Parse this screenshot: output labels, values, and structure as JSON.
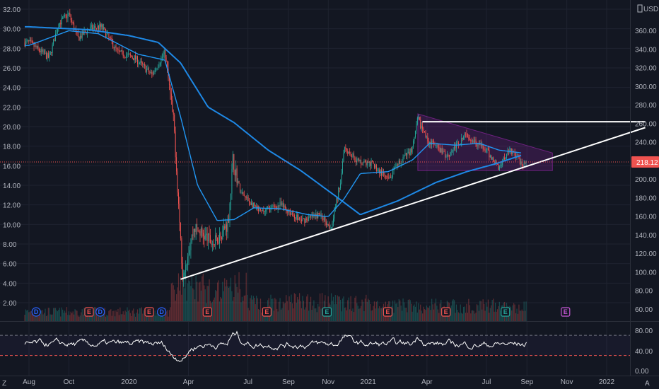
{
  "colors": {
    "background": "#131722",
    "grid": "#1f2330",
    "text": "#b2b5be",
    "up": "#26a69a",
    "down": "#ef5350",
    "ma_fast": "#2196f3",
    "ma_slow": "#1e88e5",
    "trendline": "#ffffff",
    "resistance": "#ffffff",
    "triangle_fill": "#9c27b0",
    "price_line": "#ef5350",
    "rsi_line": "#ffffff",
    "rsi_band": "#b2b5be",
    "rsi_lower": "#ef5350",
    "dividend": "#2962ff",
    "earnings_past_red": "#ef5350",
    "earnings_past_green": "#26a69a",
    "earnings_future": "#c858d8"
  },
  "toolbar": {
    "currency": "USD",
    "scale_icon": "scale-icon",
    "mode_left": "Z",
    "mode_right": "A"
  },
  "price_badge": "218.12",
  "chart_data": {
    "type": "candlestick",
    "x_axis_labels": [
      "Aug",
      "Oct",
      "2020",
      "Apr",
      "Jul",
      "Sep",
      "Nov",
      "2021",
      "Apr",
      "Jul",
      "Sep",
      "Nov",
      "2022"
    ],
    "left_axis": {
      "ticks": [
        "2.00",
        "4.00",
        "6.00",
        "8.00",
        "10.00",
        "12.00",
        "14.00",
        "16.00",
        "18.00",
        "20.00",
        "22.00",
        "24.00",
        "26.00",
        "28.00",
        "30.00",
        "32.00"
      ],
      "range": [
        0,
        32.6
      ]
    },
    "right_axis": {
      "ticks": [
        "60.00",
        "80.00",
        "100.00",
        "120.00",
        "140.00",
        "160.00",
        "180.00",
        "200.00",
        "220.00",
        "240.00",
        "260.00",
        "280.00",
        "300.00",
        "320.00",
        "340.00",
        "360.00"
      ],
      "range": [
        44.4,
        373.3
      ]
    },
    "last_price": 218.12,
    "rsi": {
      "ticks": [
        "80.00",
        "40.00",
        "0.00"
      ],
      "upper_band": 70,
      "lower_band": 30,
      "range": [
        0,
        86
      ]
    },
    "price_anchors": [
      {
        "t": "2019-08",
        "p": 28.6
      },
      {
        "t": "2019-09-01",
        "p": 27
      },
      {
        "t": "2019-09-15",
        "p": 30.5
      },
      {
        "t": "2019-10-01",
        "p": 31.5
      },
      {
        "t": "2019-10-15",
        "p": 29
      },
      {
        "t": "2019-11-01",
        "p": 30
      },
      {
        "t": "2019-11-20",
        "p": 30.2
      },
      {
        "t": "2019-12-15",
        "p": 27.6
      },
      {
        "t": "2020-01-10",
        "p": 27
      },
      {
        "t": "2020-02-05",
        "p": 25.3
      },
      {
        "t": "2020-02-25",
        "p": 27.6
      },
      {
        "t": "2020-03-10",
        "p": 20
      },
      {
        "t": "2020-03-23",
        "p": 4.9
      },
      {
        "t": "2020-04-10",
        "p": 9.7
      },
      {
        "t": "2020-05-10",
        "p": 8
      },
      {
        "t": "2020-06-01",
        "p": 10.2
      },
      {
        "t": "2020-06-08",
        "p": 16.6
      },
      {
        "t": "2020-06-20",
        "p": 13.2
      },
      {
        "t": "2020-07-20",
        "p": 11.2
      },
      {
        "t": "2020-08-20",
        "p": 12
      },
      {
        "t": "2020-09-20",
        "p": 10.4
      },
      {
        "t": "2020-10-20",
        "p": 11
      },
      {
        "t": "2020-11-05",
        "p": 9.7
      },
      {
        "t": "2020-11-20",
        "p": 14.5
      },
      {
        "t": "2020-11-25",
        "p": 18
      },
      {
        "t": "2020-12-15",
        "p": 16.5
      },
      {
        "t": "2021-01-10",
        "p": 16
      },
      {
        "t": "2021-02-01",
        "p": 14.5
      },
      {
        "t": "2021-02-20",
        "p": 16.5
      },
      {
        "t": "2021-03-10",
        "p": 17.8
      },
      {
        "t": "2021-03-18",
        "p": 20.8
      },
      {
        "t": "2021-04-01",
        "p": 18.7
      },
      {
        "t": "2021-05-01",
        "p": 17
      },
      {
        "t": "2021-06-01",
        "p": 19.2
      },
      {
        "t": "2021-07-01",
        "p": 17.5
      },
      {
        "t": "2021-07-20",
        "p": 15.8
      },
      {
        "t": "2021-08-05",
        "p": 17.8
      },
      {
        "t": "2021-08-25",
        "p": 16.2
      },
      {
        "t": "2021-09-01",
        "p": 16.1
      }
    ],
    "ma_fast": [
      {
        "t": "2019-08",
        "p": 28.3
      },
      {
        "t": "2019-10-01",
        "p": 29.8
      },
      {
        "t": "2019-11-15",
        "p": 29.5
      },
      {
        "t": "2020-01-15",
        "p": 27.4
      },
      {
        "t": "2020-02-25",
        "p": 26.8
      },
      {
        "t": "2020-03-20",
        "p": 21
      },
      {
        "t": "2020-04-15",
        "p": 14
      },
      {
        "t": "2020-05-15",
        "p": 10.4
      },
      {
        "t": "2020-06-10",
        "p": 10.5
      },
      {
        "t": "2020-07-10",
        "p": 11.7
      },
      {
        "t": "2020-08-20",
        "p": 11.6
      },
      {
        "t": "2020-10-01",
        "p": 11
      },
      {
        "t": "2020-11-01",
        "p": 10.8
      },
      {
        "t": "2020-11-25",
        "p": 12.6
      },
      {
        "t": "2020-12-20",
        "p": 15.2
      },
      {
        "t": "2021-02-01",
        "p": 15.4
      },
      {
        "t": "2021-03-10",
        "p": 16.6
      },
      {
        "t": "2021-04-05",
        "p": 18.3
      },
      {
        "t": "2021-05-15",
        "p": 18.1
      },
      {
        "t": "2021-06-20",
        "p": 18.3
      },
      {
        "t": "2021-07-20",
        "p": 17.6
      },
      {
        "t": "2021-08-25",
        "p": 17.3
      }
    ],
    "ma_slow": [
      {
        "t": "2019-08",
        "p": 30.2
      },
      {
        "t": "2019-11-01",
        "p": 29.9
      },
      {
        "t": "2020-01-01",
        "p": 29.3
      },
      {
        "t": "2020-02-15",
        "p": 28.6
      },
      {
        "t": "2020-03-20",
        "p": 26.5
      },
      {
        "t": "2020-05-01",
        "p": 22
      },
      {
        "t": "2020-06-10",
        "p": 20.4
      },
      {
        "t": "2020-08-01",
        "p": 17.6
      },
      {
        "t": "2020-09-20",
        "p": 15.5
      },
      {
        "t": "2020-11-10",
        "p": 13
      },
      {
        "t": "2020-12-20",
        "p": 11
      },
      {
        "t": "2021-02-15",
        "p": 12.4
      },
      {
        "t": "2021-04-15",
        "p": 14.3
      },
      {
        "t": "2021-06-01",
        "p": 15.4
      },
      {
        "t": "2021-07-15",
        "p": 16.2
      },
      {
        "t": "2021-08-25",
        "p": 17.1
      }
    ],
    "drawings": {
      "support_trendline": {
        "start": {
          "t": "2020-03-20",
          "p": 4.4
        },
        "end": {
          "t": "2022-03-01",
          "p": 19.9
        }
      },
      "resistance_line": {
        "start": {
          "t": "2021-03-25",
          "p": 20.5
        },
        "end": {
          "t": "2022-03-01",
          "p": 20.5
        }
      },
      "triangle": [
        {
          "t": "2021-03-18",
          "p": 21.3
        },
        {
          "t": "2021-10-10",
          "p": 17.3
        },
        {
          "t": "2021-10-10",
          "p": 15.5
        },
        {
          "t": "2021-03-18",
          "p": 15.5
        }
      ]
    },
    "events": [
      {
        "t": "2019-08-12",
        "label": "D",
        "kind": "dividend"
      },
      {
        "t": "2019-11-01",
        "label": "E",
        "kind": "earnings_past_red"
      },
      {
        "t": "2019-11-18",
        "label": "D",
        "kind": "dividend"
      },
      {
        "t": "2020-02-01",
        "label": "E",
        "kind": "earnings_past_red"
      },
      {
        "t": "2020-02-20",
        "label": "D",
        "kind": "dividend"
      },
      {
        "t": "2020-04-30",
        "label": "E",
        "kind": "earnings_past_red"
      },
      {
        "t": "2020-07-30",
        "label": "E",
        "kind": "earnings_past_red"
      },
      {
        "t": "2020-10-30",
        "label": "E",
        "kind": "earnings_past_green"
      },
      {
        "t": "2021-01-31",
        "label": "E",
        "kind": "earnings_past_red"
      },
      {
        "t": "2021-04-30",
        "label": "E",
        "kind": "earnings_past_red"
      },
      {
        "t": "2021-07-30",
        "label": "E",
        "kind": "earnings_past_green"
      },
      {
        "t": "2021-10-30",
        "label": "E",
        "kind": "earnings_future"
      }
    ]
  }
}
